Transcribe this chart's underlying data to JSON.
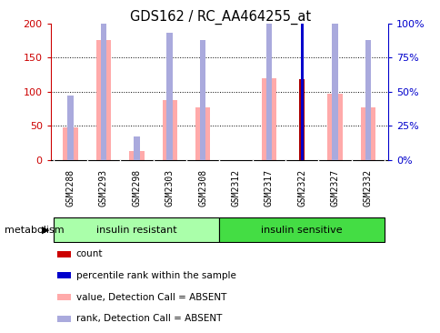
{
  "title": "GDS162 / RC_AA464255_at",
  "samples": [
    "GSM2288",
    "GSM2293",
    "GSM2298",
    "GSM2303",
    "GSM2308",
    "GSM2312",
    "GSM2317",
    "GSM2322",
    "GSM2327",
    "GSM2332"
  ],
  "value_absent": [
    47,
    175,
    13,
    87,
    77,
    0,
    120,
    0,
    97,
    77
  ],
  "rank_absent": [
    47,
    117,
    17,
    93,
    88,
    0,
    100,
    0,
    100,
    88
  ],
  "count": [
    0,
    0,
    0,
    0,
    0,
    0,
    0,
    118,
    0,
    0
  ],
  "pct_rank": [
    0,
    0,
    0,
    0,
    0,
    0,
    0,
    113,
    0,
    0
  ],
  "groups": [
    {
      "label": "insulin resistant",
      "start": 0,
      "end": 5,
      "color": "#aaffaa"
    },
    {
      "label": "insulin sensitive",
      "start": 5,
      "end": 10,
      "color": "#44dd44"
    }
  ],
  "group_label": "metabolism",
  "left_ylim": [
    0,
    200
  ],
  "right_ylim": [
    0,
    100
  ],
  "left_yticks": [
    0,
    50,
    100,
    150,
    200
  ],
  "right_yticks": [
    0,
    25,
    50,
    75,
    100
  ],
  "right_yticklabels": [
    "0%",
    "25%",
    "50%",
    "75%",
    "100%"
  ],
  "left_color": "#cc0000",
  "right_color": "#0000cc",
  "value_absent_color": "#ffaaaa",
  "rank_absent_color": "#aaaadd",
  "count_color": "#aa0000",
  "pct_rank_color": "#0000cc",
  "legend_items": [
    {
      "label": "count",
      "color": "#cc0000"
    },
    {
      "label": "percentile rank within the sample",
      "color": "#0000cc"
    },
    {
      "label": "value, Detection Call = ABSENT",
      "color": "#ffaaaa"
    },
    {
      "label": "rank, Detection Call = ABSENT",
      "color": "#aaaadd"
    }
  ]
}
